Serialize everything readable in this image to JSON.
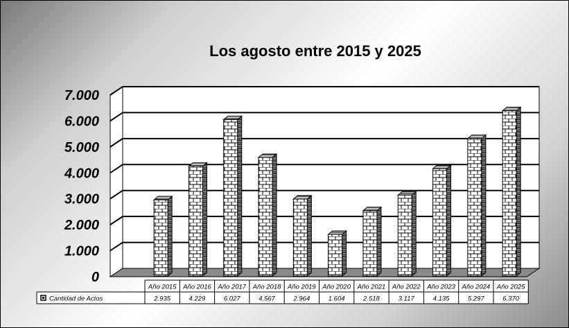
{
  "chart_data": {
    "type": "bar",
    "title": "Los agosto entre 2015 y 2025",
    "categories": [
      "Año 2015",
      "Año 2016",
      "Año 2017",
      "Año 2018",
      "Año 2019",
      "Año 2020",
      "Año 2021",
      "Año 2022",
      "Año 2023",
      "Año 2024",
      "Año 2025"
    ],
    "series": [
      {
        "name": "Cantidad de Actos",
        "values": [
          2935,
          4229,
          6027,
          4567,
          2964,
          1604,
          2518,
          3117,
          4135,
          5297,
          6370
        ],
        "value_labels": [
          "2.935",
          "4.229",
          "6.027",
          "4.567",
          "2.964",
          "1.604",
          "2.518",
          "3.117",
          "4.135",
          "5.297",
          "6.370"
        ]
      }
    ],
    "ylim": [
      0,
      7000
    ],
    "yticks": [
      0,
      1000,
      2000,
      3000,
      4000,
      5000,
      6000,
      7000
    ],
    "ytick_labels": [
      "0",
      "1.000",
      "2.000",
      "3.000",
      "4.000",
      "5.000",
      "6.000",
      "7.000"
    ],
    "grid": true,
    "legend": "data-table"
  }
}
